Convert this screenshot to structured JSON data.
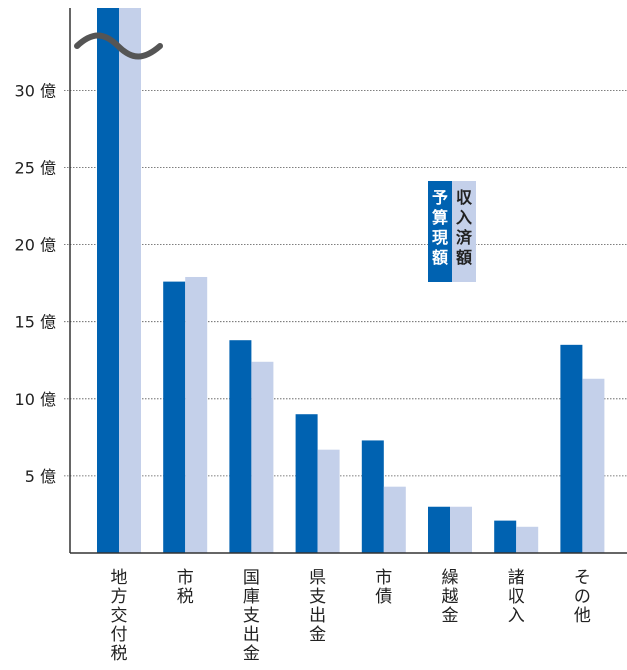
{
  "chart_data": {
    "type": "bar",
    "categories": [
      "地方交付税",
      "市税",
      "国庫支出金",
      "県支出金",
      "市債",
      "繰越金",
      "諸収入",
      "その他"
    ],
    "series": [
      {
        "name": "予算現額",
        "color": "#0062b1",
        "values": [
          35.5,
          17.6,
          13.8,
          9.0,
          7.3,
          3.0,
          2.1,
          13.5
        ]
      },
      {
        "name": "収入済額",
        "color": "#c4d0ea",
        "values": [
          35.5,
          17.9,
          12.4,
          6.7,
          4.3,
          3.0,
          1.7,
          11.3
        ]
      }
    ],
    "y_ticks": [
      {
        "value": 5,
        "label": "5 億"
      },
      {
        "value": 10,
        "label": "10 億"
      },
      {
        "value": 15,
        "label": "15 億"
      },
      {
        "value": 20,
        "label": "20 億"
      },
      {
        "value": 25,
        "label": "25 億"
      },
      {
        "value": 30,
        "label": "30 億"
      }
    ],
    "ylim": [
      0,
      35.5
    ],
    "axis_break": true,
    "grid": "horizontal dotted",
    "legend_placement": "center-right"
  }
}
